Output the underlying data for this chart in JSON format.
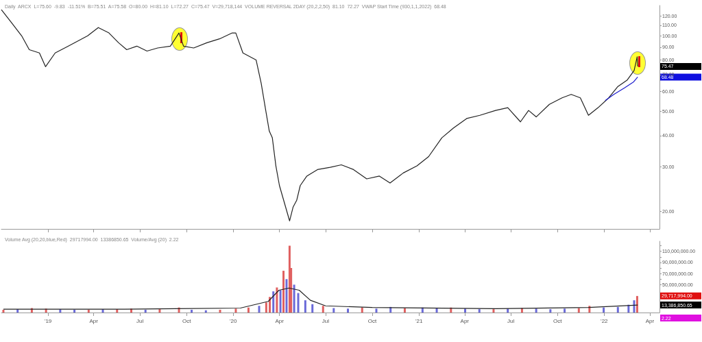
{
  "chart_data": [
    {
      "type": "line",
      "title": "Daily  ARCX  L=75.60  -9.83  -11.51%  B=75.51  A=75.58  O=80.00  H=81.10  L=72.27  C=75.47  V=29,718,144  VOLUME REVERSAL 2DAY (20,2,2,50)  81.10  72.27  VWAP Start Time (930,1,1,2022)  68.48",
      "log": "y",
      "grid": false,
      "tick_labels": "y",
      "marker": "none",
      "line_style": "solid",
      "xlim": [
        "2018-10-01",
        "2022-04-20"
      ],
      "xticks": [
        {
          "value": "2019-01-01",
          "label": null
        },
        {
          "value": "2019-04-01",
          "label": null
        },
        {
          "value": "2019-07-01",
          "label": null
        },
        {
          "value": "2019-10-01",
          "label": null
        },
        {
          "value": "2020-01-01",
          "label": null
        },
        {
          "value": "2020-04-01",
          "label": null
        },
        {
          "value": "2020-07-01",
          "label": null
        },
        {
          "value": "2020-10-01",
          "label": null
        },
        {
          "value": "2021-01-01",
          "label": null
        },
        {
          "value": "2021-04-01",
          "label": null
        },
        {
          "value": "2021-07-01",
          "label": null
        },
        {
          "value": "2021-10-01",
          "label": null
        },
        {
          "value": "2022-01-01",
          "label": null
        },
        {
          "value": "2022-04-01",
          "label": null
        }
      ],
      "ylim": [
        17,
        132
      ],
      "yticks": [
        {
          "value": 20,
          "label": "20.00"
        },
        {
          "value": 30,
          "label": "30.00"
        },
        {
          "value": 40,
          "label": "40.00"
        },
        {
          "value": 50,
          "label": "50.00"
        },
        {
          "value": 60,
          "label": "60.00"
        },
        {
          "value": 70,
          "label": "70.00"
        },
        {
          "value": 80,
          "label": "80.00"
        },
        {
          "value": 90,
          "label": "90.00"
        },
        {
          "value": 100,
          "label": "100.00"
        },
        {
          "value": 110,
          "label": "110.00"
        },
        {
          "value": 120,
          "label": "120.00"
        }
      ],
      "series": [
        {
          "color": "#222222",
          "x": [
            "2018-10-01",
            "2018-10-20",
            "2018-11-10",
            "2018-11-25",
            "2018-12-15",
            "2018-12-27",
            "2019-01-15",
            "2019-02-10",
            "2019-03-20",
            "2019-04-10",
            "2019-05-01",
            "2019-05-20",
            "2019-06-05",
            "2019-06-25",
            "2019-07-15",
            "2019-08-05",
            "2019-08-30",
            "2019-09-16",
            "2019-09-25",
            "2019-10-15",
            "2019-11-10",
            "2019-12-05",
            "2019-12-30",
            "2020-01-06",
            "2020-01-20",
            "2020-02-15",
            "2020-02-25",
            "2020-03-05",
            "2020-03-12",
            "2020-03-18",
            "2020-03-25",
            "2020-04-01",
            "2020-04-21",
            "2020-04-28",
            "2020-05-05",
            "2020-05-12",
            "2020-05-25",
            "2020-06-15",
            "2020-07-10",
            "2020-08-01",
            "2020-08-25",
            "2020-09-20",
            "2020-10-15",
            "2020-11-05",
            "2020-12-01",
            "2020-12-28",
            "2021-01-20",
            "2021-02-15",
            "2021-03-10",
            "2021-04-05",
            "2021-05-01",
            "2021-06-01",
            "2021-06-25",
            "2021-07-20",
            "2021-08-05",
            "2021-08-20",
            "2021-09-15",
            "2021-10-10",
            "2021-10-28",
            "2021-11-15",
            "2021-12-01",
            "2021-12-20",
            "2022-01-10",
            "2022-01-28",
            "2022-02-15",
            "2022-03-01",
            "2022-03-07",
            "2022-03-08"
          ],
          "values": [
            127.1,
            113.5,
            99.9,
            88.0,
            85.4,
            75.3,
            85.4,
            90.9,
            99.9,
            107.8,
            102.6,
            93.8,
            88.0,
            90.9,
            86.9,
            89.4,
            90.9,
            102.6,
            90.9,
            89.4,
            93.8,
            97.2,
            102.6,
            102.6,
            85.4,
            80.1,
            64.7,
            50.4,
            41.7,
            39.2,
            30.3,
            25.3,
            18.3,
            20.8,
            22.1,
            25.3,
            27.6,
            29.3,
            29.9,
            30.6,
            29.3,
            26.9,
            27.6,
            25.9,
            28.4,
            30.3,
            33.0,
            39.2,
            42.9,
            46.8,
            48.2,
            50.4,
            51.7,
            45.4,
            50.4,
            47.5,
            53.3,
            56.6,
            58.4,
            56.6,
            48.2,
            51.7,
            56.6,
            62.8,
            66.5,
            72.7,
            82.5,
            75.47
          ]
        },
        {
          "color": "#1a1acc",
          "x": [
            "2022-01-03",
            "2022-01-20",
            "2022-02-10",
            "2022-02-28",
            "2022-03-08"
          ],
          "values": [
            55.2,
            58.4,
            62.0,
            65.5,
            68.48
          ]
        }
      ],
      "annotations": [
        "75.47",
        "68.48"
      ]
    },
    {
      "type": "bar",
      "title": "Volume Avg (20,20,blue,Red)  29717994.00  13386850.65  Volume/Avg (20)  2.22",
      "grid": false,
      "marker": "none",
      "xlim": [
        "2018-10-01",
        "2022-04-20"
      ],
      "xticks": [
        {
          "value": "2019-01-01",
          "label": "'19"
        },
        {
          "value": "2019-04-01",
          "label": "Apr"
        },
        {
          "value": "2019-07-01",
          "label": "Jul"
        },
        {
          "value": "2019-10-01",
          "label": "Oct"
        },
        {
          "value": "2020-01-01",
          "label": "'20"
        },
        {
          "value": "2020-04-01",
          "label": "Apr"
        },
        {
          "value": "2020-07-01",
          "label": "Jul"
        },
        {
          "value": "2020-10-01",
          "label": "Oct"
        },
        {
          "value": "2021-01-01",
          "label": "'21"
        },
        {
          "value": "2021-04-01",
          "label": "Apr"
        },
        {
          "value": "2021-07-01",
          "label": "Jul"
        },
        {
          "value": "2021-10-01",
          "label": "Oct"
        },
        {
          "value": "2022-01-01",
          "label": "'22"
        },
        {
          "value": "2022-04-01",
          "label": "Apr"
        }
      ],
      "ylim": [
        0,
        128000000
      ],
      "yticks": [
        {
          "value": 50000000,
          "label": "50,000,000.00"
        },
        {
          "value": 60000000,
          "label": null
        },
        {
          "value": 70000000,
          "label": "70,000,000.00"
        },
        {
          "value": 80000000,
          "label": null
        },
        {
          "value": 90000000,
          "label": "90,000,000.00"
        },
        {
          "value": 100000000,
          "label": null
        },
        {
          "value": 110000000,
          "label": "110,000,000.00"
        },
        {
          "value": 120000000,
          "label": null
        }
      ],
      "series": [
        {
          "x": [
            "2018-10-05",
            "2018-11-02",
            "2018-11-30",
            "2018-12-28",
            "2019-01-25",
            "2019-02-22",
            "2019-03-22",
            "2019-04-19",
            "2019-05-17",
            "2019-06-14",
            "2019-07-12",
            "2019-08-09",
            "2019-09-16",
            "2019-10-11",
            "2019-11-08",
            "2019-12-06",
            "2020-01-06",
            "2020-01-31",
            "2020-02-21",
            "2020-03-06",
            "2020-03-13",
            "2020-03-20",
            "2020-03-27",
            "2020-04-03",
            "2020-04-09",
            "2020-04-15",
            "2020-04-21",
            "2020-04-24",
            "2020-04-30",
            "2020-05-08",
            "2020-05-22",
            "2020-06-05",
            "2020-06-26",
            "2020-07-17",
            "2020-08-14",
            "2020-09-11",
            "2020-10-09",
            "2020-11-06",
            "2020-12-04",
            "2021-01-08",
            "2021-02-05",
            "2021-03-05",
            "2021-04-02",
            "2021-04-30",
            "2021-05-28",
            "2021-06-25",
            "2021-07-23",
            "2021-08-20",
            "2021-09-17",
            "2021-10-15",
            "2021-11-12",
            "2021-12-03",
            "2021-12-31",
            "2022-01-28",
            "2022-02-18",
            "2022-03-01",
            "2022-03-07"
          ],
          "values": [
            5000000,
            6000000,
            8000000,
            7000000,
            6000000,
            5000000,
            5000000,
            6000000,
            6000000,
            7000000,
            5000000,
            6000000,
            9000000,
            5000000,
            4000000,
            5000000,
            7000000,
            9000000,
            12000000,
            18000000,
            28000000,
            38000000,
            45000000,
            40000000,
            75000000,
            60000000,
            120000000,
            80000000,
            50000000,
            35000000,
            22000000,
            15000000,
            12000000,
            8000000,
            7000000,
            9000000,
            7000000,
            10000000,
            8000000,
            9000000,
            8000000,
            9000000,
            7000000,
            6000000,
            6000000,
            7000000,
            8000000,
            7000000,
            6000000,
            7000000,
            8000000,
            12000000,
            9000000,
            10000000,
            14000000,
            22000000,
            29700000
          ],
          "colors": [
            "#e06060",
            "#6a6ad8",
            "#e06060",
            "#e06060",
            "#6a6ad8",
            "#6a6ad8",
            "#e06060",
            "#6a6ad8",
            "#e06060",
            "#e06060",
            "#6a6ad8",
            "#e06060",
            "#e06060",
            "#6a6ad8",
            "#6a6ad8",
            "#e06060",
            "#e06060",
            "#e06060",
            "#6a6ad8",
            "#e06060",
            "#e06060",
            "#6a6ad8",
            "#e06060",
            "#6a6ad8",
            "#e06060",
            "#6a6ad8",
            "#e06060",
            "#e06060",
            "#6a6ad8",
            "#6a6ad8",
            "#6a6ad8",
            "#6a6ad8",
            "#e06060",
            "#6a6ad8",
            "#6a6ad8",
            "#e06060",
            "#6a6ad8",
            "#6a6ad8",
            "#e06060",
            "#6a6ad8",
            "#6a6ad8",
            "#e06060",
            "#6a6ad8",
            "#6a6ad8",
            "#e06060",
            "#6a6ad8",
            "#e06060",
            "#6a6ad8",
            "#6a6ad8",
            "#6a6ad8",
            "#e06060",
            "#e06060",
            "#6a6ad8",
            "#6a6ad8",
            "#6a6ad8",
            "#6a6ad8",
            "#e06060"
          ]
        },
        {
          "type": "line",
          "color": "#222222",
          "x": [
            "2018-10-05",
            "2019-06-01",
            "2020-01-15",
            "2020-03-10",
            "2020-03-31",
            "2020-04-20",
            "2020-05-10",
            "2020-06-01",
            "2020-07-01",
            "2020-10-01",
            "2021-06-01",
            "2021-12-01",
            "2022-03-08"
          ],
          "values": [
            6000000,
            6000000,
            8000000,
            20000000,
            40000000,
            44000000,
            40000000,
            22000000,
            12000000,
            9000000,
            7000000,
            9000000,
            13400000
          ]
        }
      ],
      "annotations": [
        "29,717,994.00",
        "13,386,850.65",
        "2.22"
      ]
    }
  ]
}
